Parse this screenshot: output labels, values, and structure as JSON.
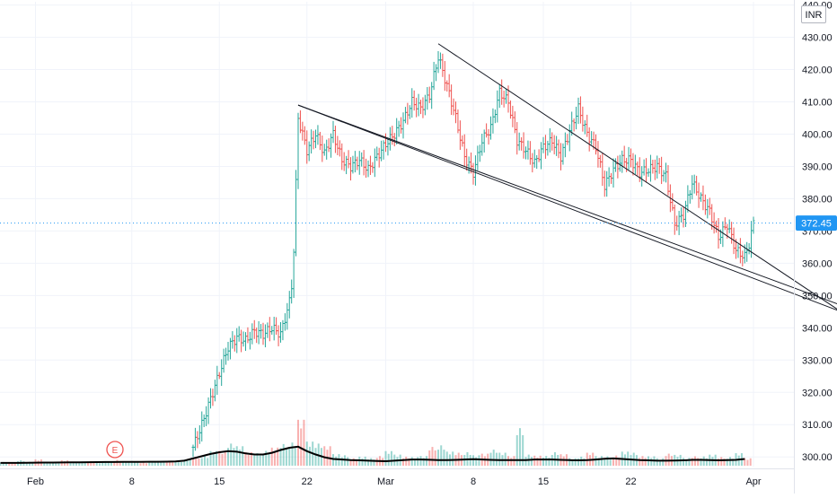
{
  "currency": "INR",
  "earnings_marker": "E",
  "colors": {
    "up": "#26a69a",
    "down": "#ef5350",
    "price_line": "#2196f3",
    "trendline": "#131722",
    "volume_ma": "#000000",
    "axis_text": "#131722",
    "grid": "#f0f3fa"
  },
  "chart_data": {
    "type": "candlestick",
    "title": "",
    "xlabel": "",
    "ylabel": "",
    "x_ticks": [
      "Feb",
      "8",
      "15",
      "22",
      "Mar",
      "8",
      "15",
      "22",
      "Apr"
    ],
    "y_ticks": [
      300,
      310,
      320,
      330,
      340,
      350,
      360,
      370,
      380,
      390,
      400,
      410,
      420,
      430,
      440
    ],
    "y_tick_labels": [
      "300.00",
      "310.00",
      "320.00",
      "330.00",
      "340.00",
      "350.00",
      "360.00",
      "370.00",
      "380.00",
      "390.00",
      "400.00",
      "410.00",
      "420.00",
      "430.00",
      "440.00"
    ],
    "ylim": [
      297,
      441
    ],
    "last_price": 372.45,
    "last_price_label": "372.45",
    "trendlines": [
      {
        "name": "upper",
        "from": {
          "day": 34,
          "price": 409
        },
        "to": {
          "day": 96,
          "price": 345
        }
      },
      {
        "name": "lower",
        "from": {
          "day": 34,
          "price": 409
        },
        "to": {
          "day": 96,
          "price": 347
        }
      },
      {
        "name": "upper-2",
        "from": {
          "day": 50,
          "price": 428
        },
        "to": {
          "day": 96,
          "price": 345
        }
      }
    ],
    "price_path": [
      {
        "day": 22,
        "price": 303
      },
      {
        "day": 23,
        "price": 310
      },
      {
        "day": 24,
        "price": 318
      },
      {
        "day": 25,
        "price": 326
      },
      {
        "day": 26,
        "price": 334
      },
      {
        "day": 27,
        "price": 337
      },
      {
        "day": 28,
        "price": 336
      },
      {
        "day": 29,
        "price": 339
      },
      {
        "day": 30,
        "price": 338
      },
      {
        "day": 31,
        "price": 340
      },
      {
        "day": 32,
        "price": 338
      },
      {
        "day": 33,
        "price": 348
      },
      {
        "day": 33.4,
        "price": 356
      },
      {
        "day": 34,
        "price": 405
      },
      {
        "day": 35,
        "price": 395
      },
      {
        "day": 36,
        "price": 400
      },
      {
        "day": 37,
        "price": 394
      },
      {
        "day": 38,
        "price": 400
      },
      {
        "day": 39,
        "price": 392
      },
      {
        "day": 40,
        "price": 390
      },
      {
        "day": 41,
        "price": 392
      },
      {
        "day": 42,
        "price": 389
      },
      {
        "day": 43,
        "price": 393
      },
      {
        "day": 44,
        "price": 397
      },
      {
        "day": 45,
        "price": 400
      },
      {
        "day": 46,
        "price": 404
      },
      {
        "day": 47,
        "price": 410
      },
      {
        "day": 48,
        "price": 408
      },
      {
        "day": 49,
        "price": 412
      },
      {
        "day": 50,
        "price": 424
      },
      {
        "day": 51,
        "price": 415
      },
      {
        "day": 52,
        "price": 405
      },
      {
        "day": 53,
        "price": 393
      },
      {
        "day": 54,
        "price": 388
      },
      {
        "day": 55,
        "price": 398
      },
      {
        "day": 56,
        "price": 402
      },
      {
        "day": 57,
        "price": 413
      },
      {
        "day": 58,
        "price": 410
      },
      {
        "day": 59,
        "price": 398
      },
      {
        "day": 60,
        "price": 395
      },
      {
        "day": 61,
        "price": 391
      },
      {
        "day": 62,
        "price": 396
      },
      {
        "day": 63,
        "price": 398
      },
      {
        "day": 64,
        "price": 393
      },
      {
        "day": 65,
        "price": 401
      },
      {
        "day": 66,
        "price": 408
      },
      {
        "day": 67,
        "price": 400
      },
      {
        "day": 68,
        "price": 396
      },
      {
        "day": 69,
        "price": 384
      },
      {
        "day": 70,
        "price": 389
      },
      {
        "day": 71,
        "price": 392
      },
      {
        "day": 72,
        "price": 392
      },
      {
        "day": 73,
        "price": 388
      },
      {
        "day": 74,
        "price": 389
      },
      {
        "day": 75,
        "price": 390
      },
      {
        "day": 76,
        "price": 387
      },
      {
        "day": 77,
        "price": 372
      },
      {
        "day": 78,
        "price": 375
      },
      {
        "day": 79,
        "price": 385
      },
      {
        "day": 80,
        "price": 380
      },
      {
        "day": 81,
        "price": 376
      },
      {
        "day": 82,
        "price": 368
      },
      {
        "day": 83,
        "price": 372
      },
      {
        "day": 84,
        "price": 364
      },
      {
        "day": 85,
        "price": 362
      },
      {
        "day": 85.5,
        "price": 366
      },
      {
        "day": 86,
        "price": 372.45
      }
    ],
    "volume": {
      "ylim_max": 60,
      "values_by_day": [
        4,
        3,
        5,
        4,
        6,
        4,
        3,
        5,
        4,
        4,
        5,
        3,
        4,
        6,
        4,
        5,
        3,
        4,
        5,
        4,
        5,
        6,
        8,
        10,
        14,
        16,
        22,
        18,
        14,
        12,
        16,
        18,
        20,
        24,
        44,
        26,
        22,
        18,
        12,
        10,
        8,
        9,
        7,
        10,
        14,
        12,
        9,
        8,
        10,
        18,
        22,
        14,
        12,
        14,
        10,
        13,
        16,
        12,
        10,
        36,
        12,
        10,
        9,
        14,
        11,
        8,
        9,
        12,
        10,
        9,
        11,
        14,
        12,
        10,
        9,
        8,
        12,
        10,
        8,
        9,
        10,
        11,
        8,
        9,
        12,
        8
      ],
      "ma_by_day": [
        2.5,
        2.5,
        2.5,
        2.6,
        2.7,
        2.8,
        2.8,
        2.9,
        3,
        3,
        3.1,
        3.2,
        3.3,
        3.3,
        3.4,
        3.4,
        3.4,
        3.5,
        3.5,
        3.6,
        3.8,
        4.5,
        6.5,
        8.5,
        10.5,
        12,
        13,
        12.5,
        11,
        10,
        10,
        11.5,
        14,
        16,
        17,
        13,
        10,
        7.5,
        6,
        5.5,
        5,
        4.8,
        4.5,
        4.2,
        4,
        4.5,
        5,
        5.5,
        5.5,
        5.3,
        5,
        5,
        5.2,
        5.5,
        5.8,
        5.5,
        5.2,
        5,
        5,
        5,
        5,
        5.5,
        5.5,
        5.5,
        5.2,
        5,
        4.8,
        5,
        5.5,
        6.2,
        6.5,
        6,
        5.5,
        5,
        4.8,
        4.5,
        4.5,
        4.6,
        4.8,
        5.2,
        5.2,
        5,
        4.8,
        5,
        5.2,
        6
      ]
    }
  }
}
